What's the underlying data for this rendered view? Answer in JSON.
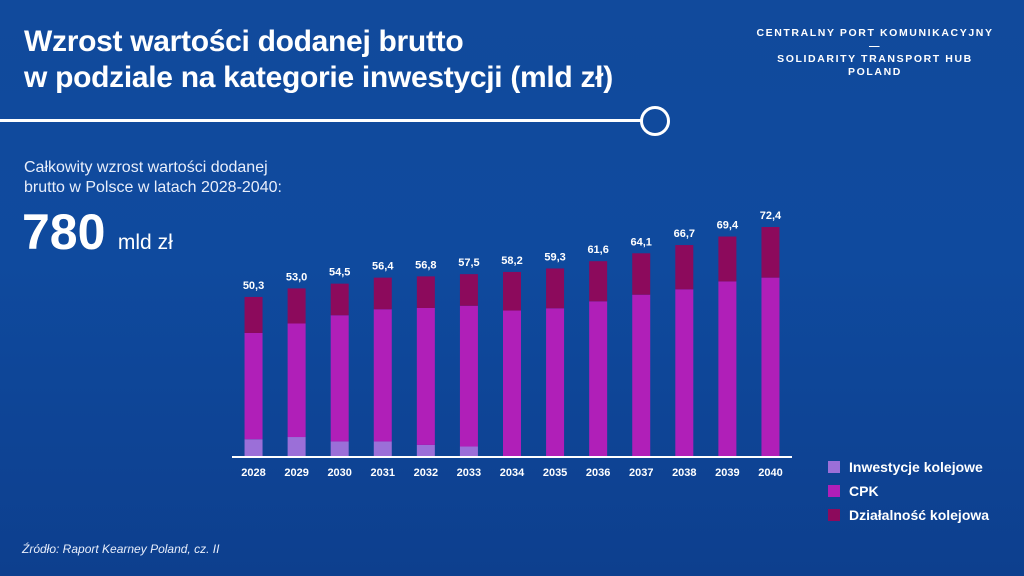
{
  "header": {
    "title_line1": "Wzrost wartości dodanej brutto",
    "title_line2": "w podziale na kategorie inwestycji (mld zł)",
    "brand_line1": "CENTRALNY PORT KOMUNIKACYJNY",
    "brand_dash": "—",
    "brand_line2": "SOLIDARITY TRANSPORT HUB",
    "brand_line3": "POLAND"
  },
  "summary": {
    "subtitle_line1": "Całkowity wzrost wartości dodanej",
    "subtitle_line2": "brutto w Polsce w latach 2028-2040:",
    "value": "780",
    "unit": "mld zł"
  },
  "source": "Źródło: Raport Kearney Poland, cz. II",
  "chart_data": {
    "type": "bar",
    "stacked": true,
    "categories": [
      "2028",
      "2029",
      "2030",
      "2031",
      "2032",
      "2033",
      "2034",
      "2035",
      "2036",
      "2037",
      "2038",
      "2039",
      "2040"
    ],
    "totals": [
      50.3,
      53.0,
      54.5,
      56.4,
      56.8,
      57.5,
      58.2,
      59.3,
      61.6,
      64.1,
      66.7,
      69.4,
      72.4
    ],
    "total_labels": [
      "50,3",
      "53,0",
      "54,5",
      "56,4",
      "56,8",
      "57,5",
      "58,2",
      "59,3",
      "61,6",
      "64,1",
      "66,7",
      "69,4",
      "72,4"
    ],
    "series": [
      {
        "name": "Inwestycje kolejowe",
        "color": "#9b6fd8",
        "values": [
          5.3,
          6.0,
          4.6,
          4.6,
          3.5,
          3.0,
          0,
          0,
          0,
          0,
          0,
          0,
          0
        ]
      },
      {
        "name": "CPK",
        "color": "#b01fb8",
        "values": [
          33.6,
          35.9,
          39.9,
          41.8,
          43.3,
          44.5,
          46.0,
          46.7,
          48.9,
          51.0,
          52.7,
          55.2,
          56.4
        ]
      },
      {
        "name": "Działalność kolejowa",
        "color": "#8c0a5c",
        "values": [
          11.4,
          11.1,
          10.0,
          10.0,
          10.0,
          10.0,
          12.2,
          12.6,
          12.7,
          13.1,
          14.0,
          14.2,
          16.0
        ]
      }
    ],
    "ylim": [
      0,
      80
    ],
    "grid": false,
    "legend_position": "bottom-right"
  }
}
